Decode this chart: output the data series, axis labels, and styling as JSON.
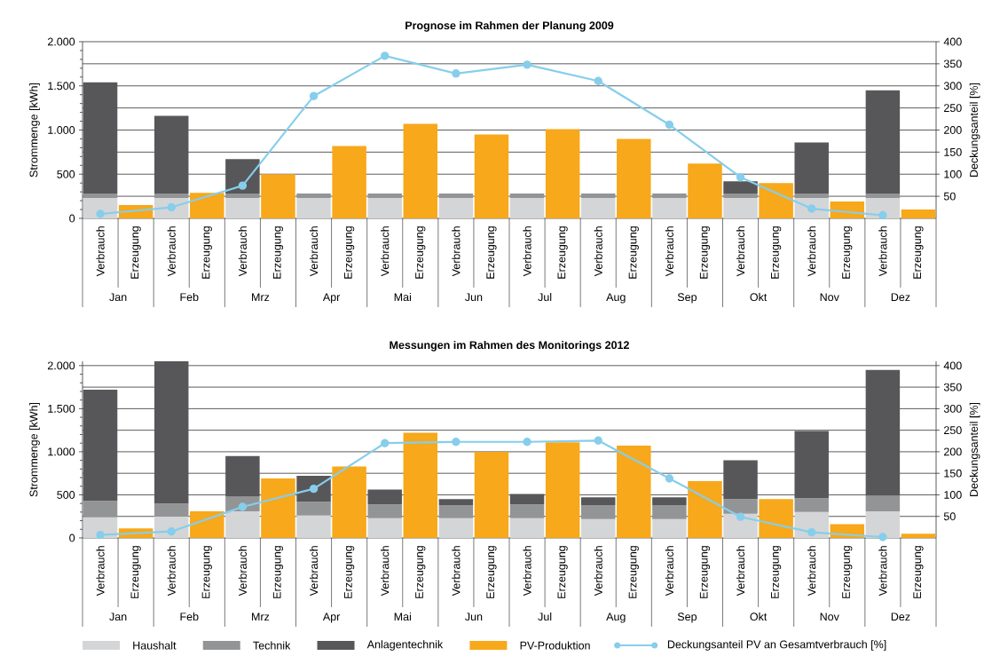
{
  "chart_data": [
    {
      "type": "bar",
      "title": "Prognose im Rahmen der Planung 2009",
      "ylabel": "Strommenge [kWh]",
      "y2label": "Deckungsanteil [%]",
      "categories": [
        "Verbrauch",
        "Erzeugung",
        "Verbrauch",
        "Erzeugung",
        "Verbrauch",
        "Erzeugung",
        "Verbrauch",
        "Erzeugung",
        "Verbrauch",
        "Erzeugung",
        "Verbrauch",
        "Erzeugung",
        "Verbrauch",
        "Erzeugung",
        "Verbrauch",
        "Erzeugung",
        "Verbrauch",
        "Erzeugung",
        "Verbrauch",
        "Erzeugung",
        "Verbrauch",
        "Erzeugung",
        "Verbrauch",
        "Erzeugung"
      ],
      "annotations": [
        {
          "text": "Jan"
        },
        {
          "text": "Feb"
        },
        {
          "text": "Mrz"
        },
        {
          "text": "Apr"
        },
        {
          "text": "Mai"
        },
        {
          "text": "Jun"
        },
        {
          "text": "Jul"
        },
        {
          "text": "Aug"
        },
        {
          "text": "Sep"
        },
        {
          "text": "Okt"
        },
        {
          "text": "Nov"
        },
        {
          "text": "Dez"
        }
      ],
      "stacked": true,
      "grid": true,
      "ylim": [
        0,
        2000
      ],
      "yticks": [
        0,
        500,
        {
          "value": 1000,
          "label": "1.000"
        },
        {
          "value": 1500,
          "label": "1.500"
        },
        {
          "value": 2000,
          "label": "2.000"
        }
      ],
      "y2lim": [
        0,
        400
      ],
      "y2ticks": [
        50,
        100,
        150,
        200,
        250,
        300,
        350,
        400
      ],
      "series": [
        {
          "color": "#d4d5d7",
          "values": [
            230,
            null,
            230,
            null,
            230,
            null,
            230,
            null,
            230,
            null,
            230,
            null,
            230,
            null,
            230,
            null,
            230,
            null,
            230,
            null,
            230,
            null,
            230,
            null
          ]
        },
        {
          "color": "#939496",
          "values": [
            50,
            null,
            50,
            null,
            50,
            null,
            50,
            null,
            50,
            null,
            50,
            null,
            50,
            null,
            50,
            null,
            50,
            null,
            50,
            null,
            50,
            null,
            50,
            null
          ]
        },
        {
          "color": "#57575a",
          "values": [
            1260,
            null,
            880,
            null,
            390,
            null,
            null,
            null,
            null,
            null,
            null,
            null,
            null,
            null,
            null,
            null,
            null,
            null,
            140,
            null,
            580,
            null,
            1170,
            null
          ]
        },
        {
          "color": "#f7a81b",
          "values": [
            null,
            150,
            null,
            290,
            null,
            500,
            null,
            820,
            null,
            1070,
            null,
            950,
            null,
            1010,
            null,
            900,
            null,
            620,
            null,
            400,
            null,
            190,
            null,
            100
          ]
        },
        {
          "type": "line",
          "axis": "y2",
          "marker": "circle",
          "line_style": "solid",
          "color": "#86ceeb",
          "values": [
            10,
            null,
            25,
            null,
            74,
            null,
            277,
            null,
            368,
            null,
            328,
            null,
            348,
            null,
            311,
            null,
            212,
            null,
            93,
            null,
            22,
            null,
            7,
            null
          ]
        }
      ]
    },
    {
      "type": "bar",
      "title": "Messungen im Rahmen des Monitorings 2012",
      "ylabel": "Strommenge [kWh]",
      "y2label": "Deckungsanteil [%]",
      "categories": [
        "Verbrauch",
        "Erzeugung",
        "Verbrauch",
        "Erzeugung",
        "Verbrauch",
        "Erzeugung",
        "Verbrauch",
        "Erzeugung",
        "Verbrauch",
        "Erzeugung",
        "Verbrauch",
        "Erzeugung",
        "Verbrauch",
        "Erzeugung",
        "Verbrauch",
        "Erzeugung",
        "Verbrauch",
        "Erzeugung",
        "Verbrauch",
        "Erzeugung",
        "Verbrauch",
        "Erzeugung",
        "Verbrauch",
        "Erzeugung"
      ],
      "annotations": [
        {
          "text": "Jan"
        },
        {
          "text": "Feb"
        },
        {
          "text": "Mrz"
        },
        {
          "text": "Apr"
        },
        {
          "text": "Mai"
        },
        {
          "text": "Jun"
        },
        {
          "text": "Jul"
        },
        {
          "text": "Aug"
        },
        {
          "text": "Sep"
        },
        {
          "text": "Okt"
        },
        {
          "text": "Nov"
        },
        {
          "text": "Dez"
        }
      ],
      "stacked": true,
      "grid": true,
      "legend": "bottom",
      "ylim": [
        0,
        2050
      ],
      "yticks": [
        0,
        500,
        {
          "value": 1000,
          "label": "1.000"
        },
        {
          "value": 1500,
          "label": "1.500"
        },
        {
          "value": 2000,
          "label": "2.000"
        }
      ],
      "y2lim": [
        0,
        410
      ],
      "y2ticks": [
        50,
        100,
        150,
        200,
        250,
        300,
        350,
        400
      ],
      "series": [
        {
          "name": "Haushalt",
          "color": "#d4d5d7",
          "values": [
            240,
            null,
            250,
            null,
            310,
            null,
            260,
            null,
            230,
            null,
            230,
            null,
            230,
            null,
            220,
            null,
            220,
            null,
            280,
            null,
            300,
            null,
            310,
            null
          ]
        },
        {
          "name": "Technik",
          "color": "#939496",
          "values": [
            190,
            null,
            150,
            null,
            170,
            null,
            160,
            null,
            160,
            null,
            150,
            null,
            160,
            null,
            160,
            null,
            160,
            null,
            170,
            null,
            160,
            null,
            180,
            null
          ]
        },
        {
          "name": "Anlagentechnik",
          "color": "#57575a",
          "values": [
            1290,
            null,
            1650,
            null,
            470,
            null,
            300,
            null,
            170,
            null,
            70,
            null,
            120,
            null,
            90,
            null,
            90,
            null,
            450,
            null,
            780,
            null,
            1460,
            null
          ]
        },
        {
          "name": "PV-Produktion",
          "color": "#f7a81b",
          "values": [
            null,
            110,
            null,
            310,
            null,
            690,
            null,
            830,
            null,
            1220,
            null,
            1000,
            null,
            1110,
            null,
            1070,
            null,
            660,
            null,
            450,
            null,
            160,
            null,
            50
          ]
        },
        {
          "name": "Deckungsanteil PV an Gesamtverbrauch [%]",
          "type": "line",
          "axis": "y2",
          "marker": "circle",
          "line_style": "solid",
          "color": "#86ceeb",
          "values": [
            7,
            null,
            15,
            null,
            72,
            null,
            114,
            null,
            220,
            null,
            223,
            null,
            223,
            null,
            226,
            null,
            138,
            null,
            49,
            null,
            13,
            null,
            2,
            null
          ]
        }
      ]
    }
  ]
}
